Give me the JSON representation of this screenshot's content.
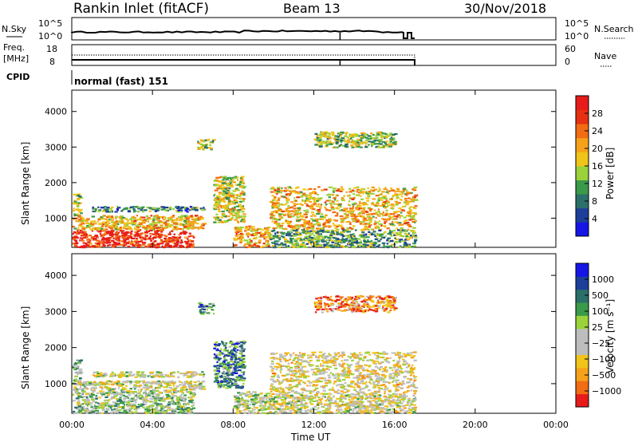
{
  "header": {
    "station": "Rankin Inlet (fitACF)",
    "beam": "Beam 13",
    "date": "30/Nov/2018"
  },
  "nsky_panel": {
    "label": "N.Sky",
    "right_label": "N.Search",
    "ticks": [
      "10^5",
      "10^0"
    ],
    "right_ticks": [
      "10^5",
      "10^0"
    ]
  },
  "freq_panel": {
    "label_line1": "Freq.",
    "label_line2": "[MHz]",
    "ticks": [
      "18",
      "8"
    ],
    "right_label": "Nave",
    "right_ticks": [
      "60",
      "0"
    ]
  },
  "cpid_panel": {
    "label": "CPID",
    "value": "normal (fast) 151"
  },
  "chart_data": [
    {
      "type": "heatmap",
      "name": "power",
      "ylabel": "Slant Range [km]",
      "ylim": [
        180,
        4600
      ],
      "yticks": [
        "4000",
        "3000",
        "2000",
        "1000"
      ],
      "colorbar_label": "Power [dB]",
      "colorbar_ticks": [
        "28",
        "24",
        "20",
        "16",
        "12",
        "8",
        "4"
      ],
      "colors": [
        "#1515e6",
        "#1d3f9a",
        "#2b6f6a",
        "#3b9a4a",
        "#9bd23b",
        "#f0c419",
        "#f5a21a",
        "#f26c14",
        "#e63112",
        "#e81b1b"
      ],
      "scatter_regions": [
        {
          "t0": 0.0,
          "t1": 6.0,
          "r0": 200,
          "r1": 700,
          "level": 0.9
        },
        {
          "t0": 0.0,
          "t1": 6.5,
          "r0": 700,
          "r1": 1100,
          "level": 0.6
        },
        {
          "t0": 0.0,
          "t1": 0.4,
          "r0": 1100,
          "r1": 1700,
          "level": 0.5
        },
        {
          "t0": 1.0,
          "t1": 6.5,
          "r0": 1200,
          "r1": 1350,
          "level": 0.3
        },
        {
          "t0": 6.2,
          "t1": 7.0,
          "r0": 2950,
          "r1": 3250,
          "level": 0.45
        },
        {
          "t0": 7.0,
          "t1": 8.5,
          "r0": 900,
          "r1": 2200,
          "level": 0.5
        },
        {
          "t0": 8.0,
          "t1": 9.8,
          "r0": 200,
          "r1": 800,
          "level": 0.65
        },
        {
          "t0": 9.8,
          "t1": 17.0,
          "r0": 700,
          "r1": 1900,
          "level": 0.6
        },
        {
          "t0": 9.8,
          "t1": 17.0,
          "r0": 200,
          "r1": 700,
          "level": 0.35
        },
        {
          "t0": 12.0,
          "t1": 16.0,
          "r0": 3000,
          "r1": 3450,
          "level": 0.45
        }
      ]
    },
    {
      "type": "heatmap",
      "name": "velocity",
      "ylabel": "Slant Range [km]",
      "ylim": [
        180,
        4600
      ],
      "yticks": [
        "4000",
        "3000",
        "2000",
        "1000"
      ],
      "colorbar_label": "Velocity [m s⁻¹]",
      "colorbar_ticks": [
        "1000",
        "500",
        "100",
        "25",
        "−25",
        "−100",
        "−500",
        "−1000"
      ],
      "colors": [
        "#e81b1b",
        "#f26c14",
        "#f5a21a",
        "#f0c419",
        "#bdbdbd",
        "#bdbdbd",
        "#9bd23b",
        "#3b9a4a",
        "#2b6f6a",
        "#1d3f9a",
        "#1515e6"
      ],
      "scatter_regions": [
        {
          "t0": 0.0,
          "t1": 6.0,
          "r0": 200,
          "r1": 800,
          "level": 0.55
        },
        {
          "t0": 0.0,
          "t1": 6.5,
          "r0": 800,
          "r1": 1100,
          "level": 0.45
        },
        {
          "t0": 0.0,
          "t1": 0.4,
          "r0": 1100,
          "r1": 1700,
          "level": 0.6
        },
        {
          "t0": 1.0,
          "t1": 6.5,
          "r0": 1200,
          "r1": 1350,
          "level": 0.45
        },
        {
          "t0": 6.2,
          "t1": 7.0,
          "r0": 2950,
          "r1": 3250,
          "level": 0.7
        },
        {
          "t0": 7.0,
          "t1": 8.5,
          "r0": 900,
          "r1": 2200,
          "level": 0.75
        },
        {
          "t0": 8.0,
          "t1": 9.8,
          "r0": 200,
          "r1": 800,
          "level": 0.5
        },
        {
          "t0": 9.8,
          "t1": 17.0,
          "r0": 700,
          "r1": 1900,
          "level": 0.4
        },
        {
          "t0": 9.8,
          "t1": 17.0,
          "r0": 200,
          "r1": 700,
          "level": 0.45
        },
        {
          "t0": 12.0,
          "t1": 16.0,
          "r0": 3000,
          "r1": 3450,
          "level": 0.2
        }
      ]
    }
  ],
  "time_axis": {
    "xlabel": "Time UT",
    "ticks": [
      "00:00",
      "04:00",
      "08:00",
      "12:00",
      "16:00",
      "20:00",
      "00:00"
    ],
    "xlim_hours": [
      0,
      24
    ],
    "data_end_hours": 17.0
  }
}
